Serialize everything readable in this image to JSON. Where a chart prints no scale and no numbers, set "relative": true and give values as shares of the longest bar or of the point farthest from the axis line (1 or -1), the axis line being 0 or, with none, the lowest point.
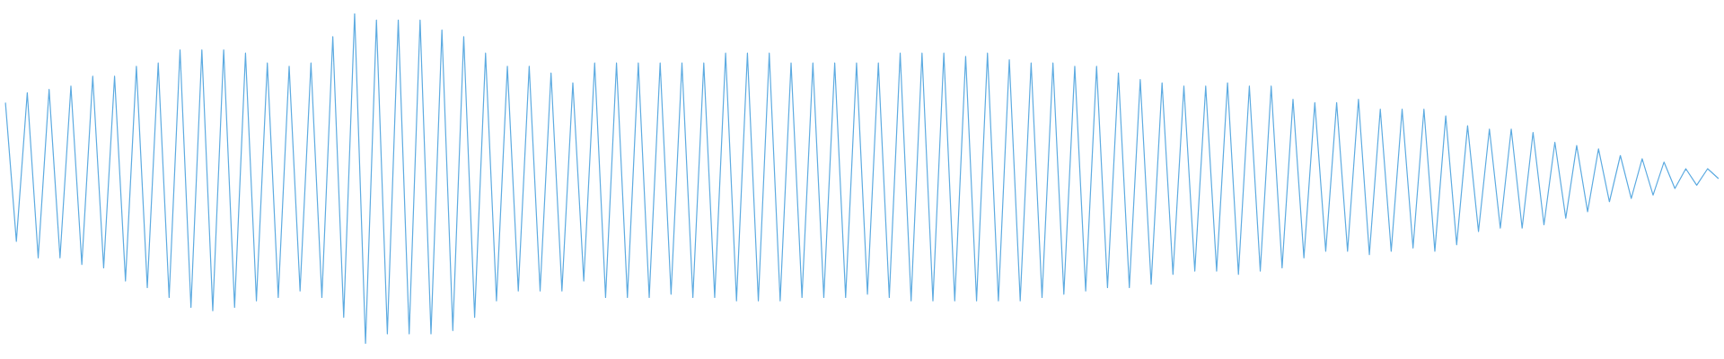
{
  "chart_data": {
    "type": "line",
    "relative": true,
    "categories": [
      null,
      null,
      null,
      null,
      null,
      null,
      null,
      null,
      null,
      null,
      null,
      null,
      null,
      null,
      null,
      null,
      null,
      null,
      null,
      null,
      null,
      null,
      null,
      null,
      null,
      null,
      null,
      null,
      null,
      null,
      null,
      null,
      null,
      null,
      null,
      null,
      null,
      null,
      null,
      null,
      null,
      null,
      null,
      null,
      null,
      null,
      null,
      null,
      null,
      null,
      null,
      null,
      null,
      null,
      null,
      null,
      null,
      null,
      null,
      null,
      null,
      null,
      null,
      null,
      null,
      null,
      null,
      null,
      null,
      null,
      null,
      null,
      null,
      null,
      null,
      null,
      null,
      null,
      null,
      null,
      null,
      null,
      null,
      null,
      null,
      null,
      null,
      null,
      null,
      null,
      null,
      null,
      null,
      null,
      null,
      null,
      null,
      null,
      null,
      null,
      null,
      null,
      null,
      null,
      null,
      null,
      null,
      null,
      null,
      null,
      null,
      null,
      null,
      null,
      null,
      null,
      null,
      null,
      null,
      null,
      null,
      null,
      null,
      null,
      null,
      null,
      null,
      null,
      null,
      null,
      null,
      null,
      null,
      null,
      null,
      null,
      null,
      null,
      null,
      null,
      null,
      null,
      null,
      null,
      null,
      null,
      null,
      null,
      null,
      null,
      null,
      null,
      null,
      null,
      null,
      null,
      null,
      null
    ],
    "series": [
      {
        "color": "#5dabe1",
        "values": [
          0.73,
          0.31,
          0.76,
          0.26,
          0.77,
          0.26,
          0.78,
          0.24,
          0.81,
          0.23,
          0.81,
          0.19,
          0.84,
          0.17,
          0.85,
          0.14,
          0.89,
          0.11,
          0.89,
          0.1,
          0.89,
          0.11,
          0.88,
          0.13,
          0.85,
          0.14,
          0.84,
          0.16,
          0.85,
          0.14,
          0.93,
          0.08,
          1,
          0,
          0.98,
          0.03,
          0.98,
          0.03,
          0.98,
          0.03,
          0.95,
          0.04,
          0.93,
          0.08,
          0.88,
          0.13,
          0.84,
          0.16,
          0.84,
          0.16,
          0.82,
          0.16,
          0.79,
          0.19,
          0.85,
          0.14,
          0.85,
          0.14,
          0.85,
          0.14,
          0.85,
          0.15,
          0.85,
          0.14,
          0.85,
          0.14,
          0.88,
          0.13,
          0.88,
          0.13,
          0.88,
          0.13,
          0.85,
          0.14,
          0.85,
          0.14,
          0.85,
          0.14,
          0.85,
          0.15,
          0.85,
          0.14,
          0.88,
          0.13,
          0.88,
          0.13,
          0.88,
          0.13,
          0.87,
          0.13,
          0.88,
          0.13,
          0.86,
          0.13,
          0.85,
          0.14,
          0.85,
          0.15,
          0.84,
          0.16,
          0.84,
          0.17,
          0.82,
          0.17,
          0.8,
          0.18,
          0.79,
          0.21,
          0.78,
          0.22,
          0.78,
          0.22,
          0.79,
          0.21,
          0.78,
          0.22,
          0.78,
          0.23,
          0.74,
          0.26,
          0.73,
          0.28,
          0.73,
          0.28,
          0.74,
          0.27,
          0.71,
          0.28,
          0.71,
          0.29,
          0.71,
          0.28,
          0.69,
          0.3,
          0.66,
          0.34,
          0.65,
          0.35,
          0.65,
          0.35,
          0.64,
          0.36,
          0.61,
          0.38,
          0.6,
          0.4,
          0.59,
          0.43,
          0.57,
          0.44,
          0.56,
          0.45,
          0.55,
          0.47,
          0.53,
          0.48,
          0.53,
          0.5
        ]
      }
    ]
  }
}
